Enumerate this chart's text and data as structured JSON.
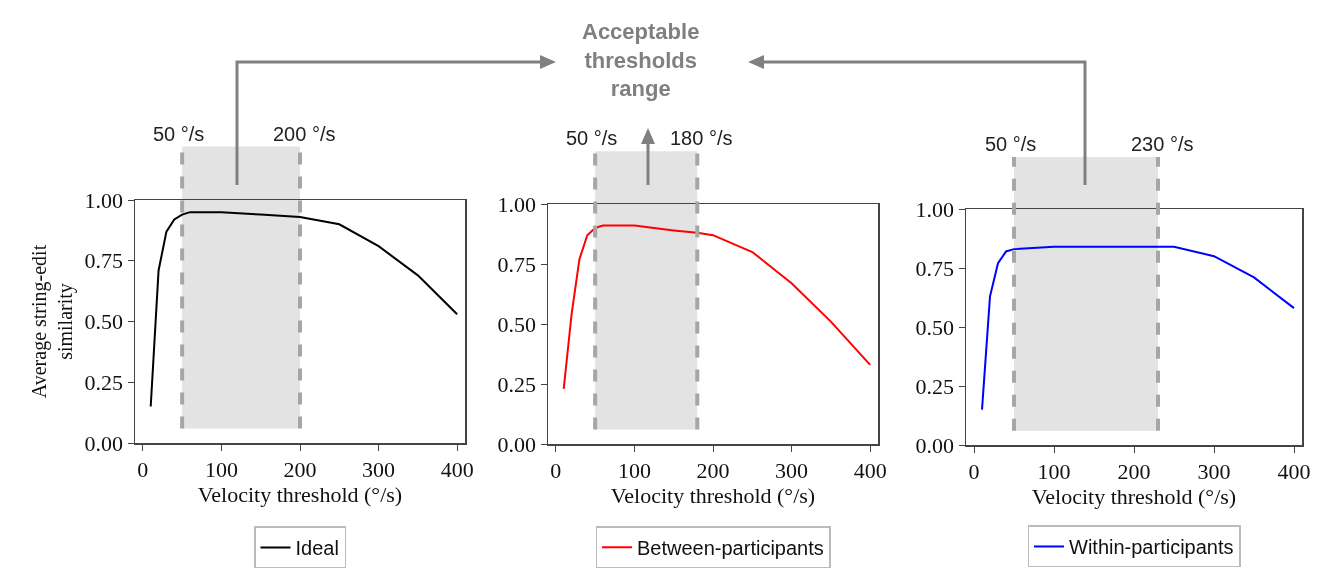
{
  "chart_data": [
    {
      "type": "line",
      "xlabel": "Velocity threshold (°/s)",
      "ylabel": "Average string-edit\nsimilarity",
      "x": [
        10,
        20,
        30,
        40,
        50,
        60,
        100,
        150,
        200,
        250,
        300,
        350,
        400
      ],
      "series": [
        {
          "name": "Ideal",
          "color": "#000000",
          "values": [
            0.15,
            0.71,
            0.87,
            0.92,
            0.94,
            0.95,
            0.95,
            0.94,
            0.93,
            0.9,
            0.81,
            0.69,
            0.53
          ]
        }
      ],
      "xlim": [
        -10,
        410
      ],
      "xticks": [
        0,
        100,
        200,
        300,
        400
      ],
      "ylim": [
        0,
        1
      ],
      "yticks": [
        {
          "value": 0,
          "label": "0.00"
        },
        {
          "value": 0.25,
          "label": "0.25"
        },
        {
          "value": 0.5,
          "label": "0.50"
        },
        {
          "value": 0.75,
          "label": "0.75"
        },
        {
          "value": 1,
          "label": "1.00"
        }
      ],
      "bands": [
        {
          "axis": "x",
          "from": 50,
          "to": 200,
          "color": "#e3e3e3"
        }
      ],
      "ref_lines": [
        {
          "axis": "x",
          "value": 50,
          "label": "50 °/s",
          "color": "#a6a6a6",
          "line_style": "dashed"
        },
        {
          "axis": "x",
          "value": 200,
          "label": "200 °/s",
          "color": "#a6a6a6",
          "line_style": "dashed"
        }
      ],
      "legend": "bottom",
      "grid": false,
      "marker": "none",
      "line_style": "solid"
    },
    {
      "type": "line",
      "xlabel": "Velocity threshold (°/s)",
      "x": [
        10,
        20,
        30,
        40,
        50,
        60,
        100,
        150,
        180,
        200,
        250,
        300,
        350,
        400
      ],
      "series": [
        {
          "name": "Between-participants",
          "color": "#ff0000",
          "values": [
            0.23,
            0.54,
            0.77,
            0.87,
            0.9,
            0.91,
            0.91,
            0.89,
            0.88,
            0.87,
            0.8,
            0.67,
            0.51,
            0.33
          ]
        }
      ],
      "xlim": [
        -10,
        410
      ],
      "xticks": [
        0,
        100,
        200,
        300,
        400
      ],
      "ylim": [
        0,
        1
      ],
      "yticks": [
        {
          "value": 0,
          "label": "0.00"
        },
        {
          "value": 0.25,
          "label": "0.25"
        },
        {
          "value": 0.5,
          "label": "0.50"
        },
        {
          "value": 0.75,
          "label": "0.75"
        },
        {
          "value": 1,
          "label": "1.00"
        }
      ],
      "bands": [
        {
          "axis": "x",
          "from": 50,
          "to": 180,
          "color": "#e3e3e3"
        }
      ],
      "ref_lines": [
        {
          "axis": "x",
          "value": 50,
          "label": "50 °/s",
          "color": "#a6a6a6",
          "line_style": "dashed"
        },
        {
          "axis": "x",
          "value": 180,
          "label": "180 °/s",
          "color": "#a6a6a6",
          "line_style": "dashed"
        }
      ],
      "annotations": [
        "Acceptable\nthresholds\nrange"
      ],
      "legend": "bottom",
      "grid": false,
      "marker": "none",
      "line_style": "solid"
    },
    {
      "type": "line",
      "xlabel": "Velocity threshold (°/s)",
      "x": [
        10,
        20,
        30,
        40,
        50,
        100,
        150,
        200,
        250,
        300,
        350,
        400
      ],
      "series": [
        {
          "name": "Within-participants",
          "color": "#0000ff",
          "values": [
            0.15,
            0.63,
            0.77,
            0.82,
            0.83,
            0.84,
            0.84,
            0.84,
            0.84,
            0.8,
            0.71,
            0.58
          ]
        }
      ],
      "xlim": [
        -10,
        410
      ],
      "xticks": [
        0,
        100,
        200,
        300,
        400
      ],
      "ylim": [
        0,
        1
      ],
      "yticks": [
        {
          "value": 0,
          "label": "0.00"
        },
        {
          "value": 0.25,
          "label": "0.25"
        },
        {
          "value": 0.5,
          "label": "0.50"
        },
        {
          "value": 0.75,
          "label": "0.75"
        },
        {
          "value": 1,
          "label": "1.00"
        }
      ],
      "bands": [
        {
          "axis": "x",
          "from": 50,
          "to": 230,
          "color": "#e3e3e3"
        }
      ],
      "ref_lines": [
        {
          "axis": "x",
          "value": 50,
          "label": "50 °/s",
          "color": "#a6a6a6",
          "line_style": "dashed"
        },
        {
          "axis": "x",
          "value": 230,
          "label": "230 °/s",
          "color": "#a6a6a6",
          "line_style": "dashed"
        }
      ],
      "legend": "bottom",
      "grid": false,
      "marker": "none",
      "line_style": "solid"
    }
  ]
}
